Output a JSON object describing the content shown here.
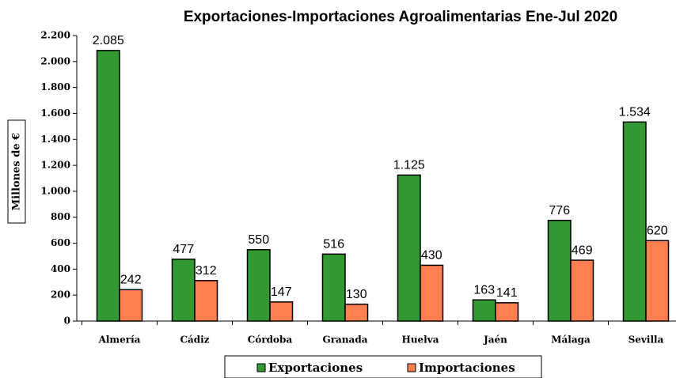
{
  "chart_data": {
    "type": "bar",
    "title": "Exportaciones-Importaciones Agroalimentarias Ene-Jul 2020",
    "y_label": "Millones de €",
    "categories": [
      "Almería",
      "Cádiz",
      "Córdoba",
      "Granada",
      "Huelva",
      "Jaén",
      "Málaga",
      "Sevilla"
    ],
    "series": [
      {
        "name": "Exportaciones",
        "color": "#339933",
        "values": [
          2085,
          477,
          550,
          516,
          1125,
          163,
          776,
          1534
        ],
        "value_labels": [
          "2.085",
          "477",
          "550",
          "516",
          "1.125",
          "163",
          "776",
          "1.534"
        ]
      },
      {
        "name": "Importaciones",
        "color": "#ff7f50",
        "values": [
          242,
          312,
          147,
          130,
          430,
          141,
          469,
          620
        ],
        "value_labels": [
          "242",
          "312",
          "147",
          "130",
          "430",
          "141",
          "469",
          "620"
        ]
      }
    ],
    "ylim": [
      0,
      2200
    ],
    "yticks": [
      0,
      200,
      400,
      600,
      800,
      {
        "value": 1000,
        "label": "1.000"
      },
      {
        "value": 1200,
        "label": "1.200"
      },
      {
        "value": 1400,
        "label": "1.400"
      },
      {
        "value": 1600,
        "label": "1.600"
      },
      {
        "value": 1800,
        "label": "1.800"
      },
      {
        "value": 2000,
        "label": "2.000"
      },
      {
        "value": 2200,
        "label": "2.200"
      }
    ],
    "legend": "bottom"
  }
}
